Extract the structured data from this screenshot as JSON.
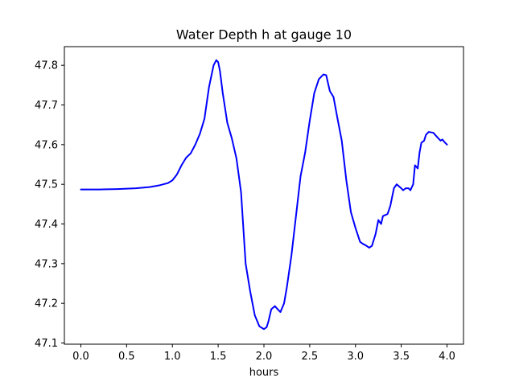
{
  "chart_data": {
    "type": "line",
    "title": "Water Depth h at gauge 10",
    "xlabel": "hours",
    "ylabel": "",
    "xlim": [
      -0.18,
      4.18
    ],
    "ylim": [
      47.097,
      47.847
    ],
    "xticks": [
      0.0,
      0.5,
      1.0,
      1.5,
      2.0,
      2.5,
      3.0,
      3.5,
      4.0
    ],
    "xtick_labels": [
      "0.0",
      "0.5",
      "1.0",
      "1.5",
      "2.0",
      "2.5",
      "3.0",
      "3.5",
      "4.0"
    ],
    "yticks": [
      47.1,
      47.2,
      47.3,
      47.4,
      47.5,
      47.6,
      47.7,
      47.8
    ],
    "ytick_labels": [
      "47.1",
      "47.2",
      "47.3",
      "47.4",
      "47.5",
      "47.6",
      "47.7",
      "47.8"
    ],
    "grid": false,
    "series": [
      {
        "color": "#0000ff",
        "x": [
          0.0,
          0.2,
          0.4,
          0.6,
          0.75,
          0.85,
          0.95,
          1.0,
          1.05,
          1.1,
          1.15,
          1.2,
          1.25,
          1.3,
          1.35,
          1.4,
          1.45,
          1.48,
          1.5,
          1.52,
          1.55,
          1.6,
          1.65,
          1.7,
          1.75,
          1.8,
          1.85,
          1.9,
          1.95,
          2.0,
          2.03,
          2.05,
          2.08,
          2.12,
          2.15,
          2.18,
          2.22,
          2.25,
          2.3,
          2.35,
          2.4,
          2.45,
          2.5,
          2.55,
          2.6,
          2.65,
          2.68,
          2.7,
          2.72,
          2.76,
          2.8,
          2.85,
          2.9,
          2.95,
          3.0,
          3.05,
          3.08,
          3.12,
          3.15,
          3.18,
          3.2,
          3.22,
          3.25,
          3.28,
          3.3,
          3.35,
          3.38,
          3.42,
          3.45,
          3.5,
          3.52,
          3.55,
          3.58,
          3.6,
          3.63,
          3.65,
          3.68,
          3.7,
          3.72,
          3.75,
          3.77,
          3.8,
          3.85,
          3.9,
          3.93,
          3.95,
          3.97,
          4.0
        ],
        "y": [
          47.487,
          47.487,
          47.488,
          47.49,
          47.493,
          47.497,
          47.503,
          47.51,
          47.525,
          47.548,
          47.567,
          47.578,
          47.6,
          47.627,
          47.665,
          47.745,
          47.8,
          47.813,
          47.808,
          47.785,
          47.73,
          47.655,
          47.615,
          47.565,
          47.48,
          47.3,
          47.23,
          47.17,
          47.142,
          47.135,
          47.14,
          47.155,
          47.185,
          47.193,
          47.185,
          47.178,
          47.2,
          47.24,
          47.32,
          47.42,
          47.52,
          47.58,
          47.66,
          47.73,
          47.765,
          47.777,
          47.775,
          47.755,
          47.735,
          47.72,
          47.67,
          47.61,
          47.51,
          47.43,
          47.39,
          47.355,
          47.35,
          47.345,
          47.34,
          47.345,
          47.36,
          47.375,
          47.41,
          47.4,
          47.42,
          47.425,
          47.445,
          47.49,
          47.5,
          47.49,
          47.485,
          47.49,
          47.49,
          47.485,
          47.5,
          47.548,
          47.54,
          47.58,
          47.605,
          47.61,
          47.625,
          47.632,
          47.63,
          47.617,
          47.61,
          47.613,
          47.607,
          47.6
        ]
      }
    ]
  }
}
